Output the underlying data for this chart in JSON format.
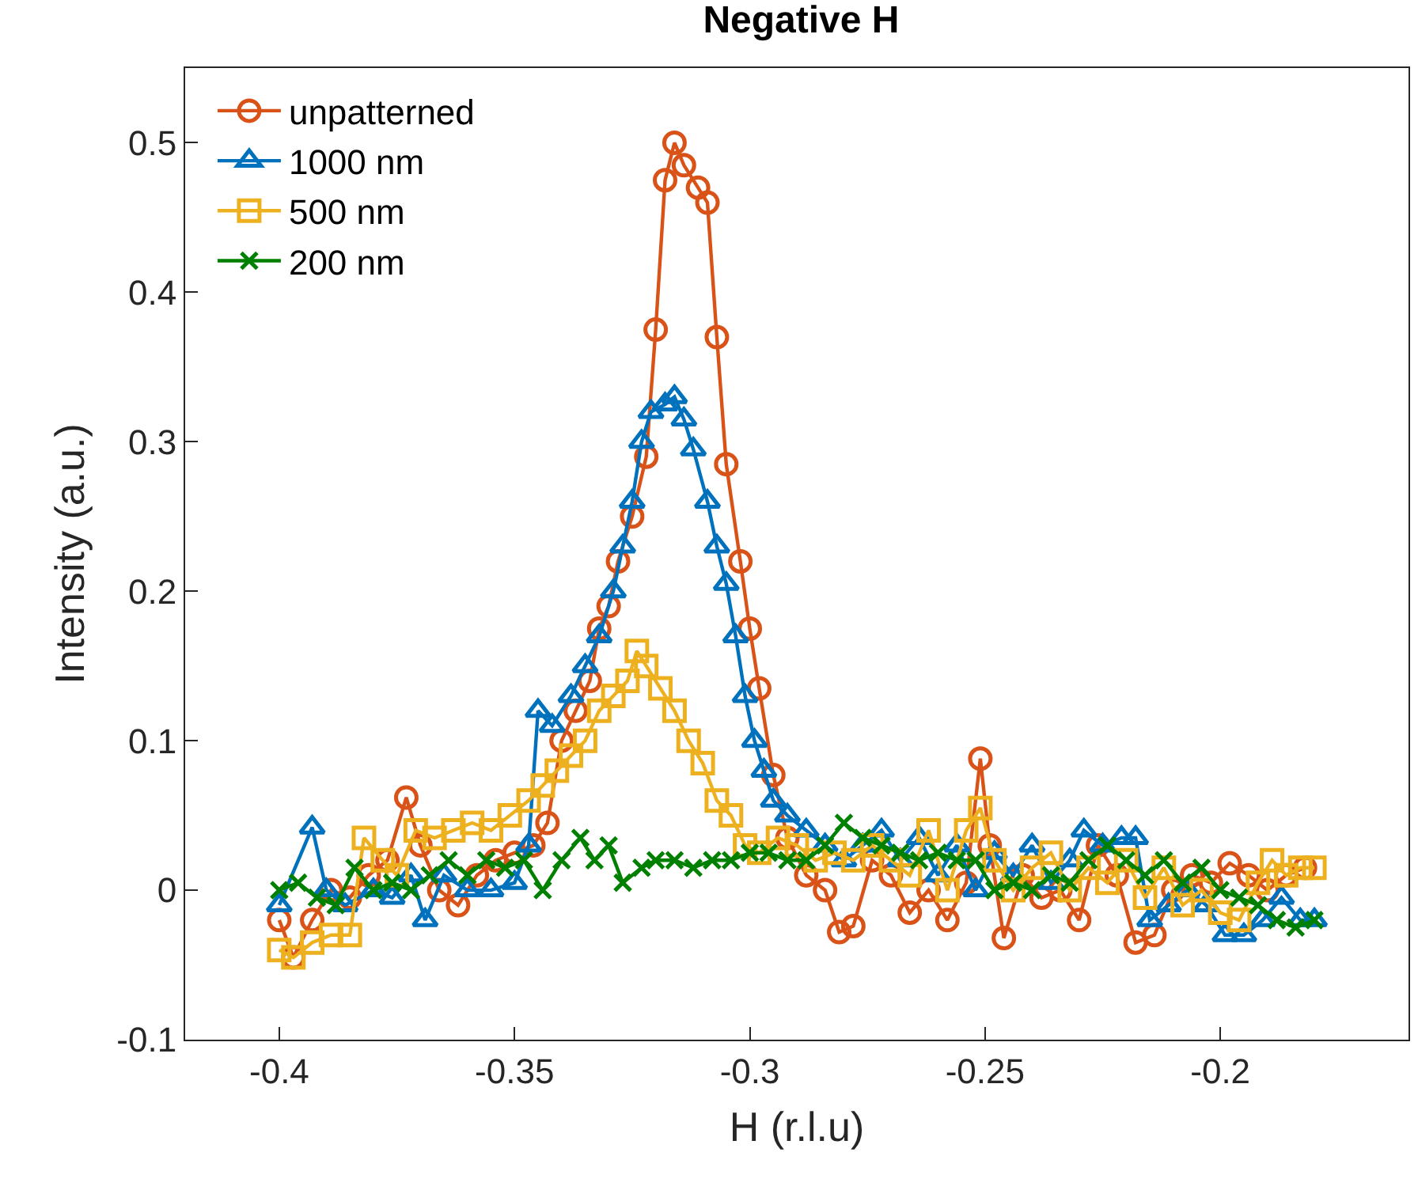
{
  "chart_data": {
    "type": "line",
    "title": "Negative H",
    "xlabel": "H (r.l.u)",
    "ylabel": "Intensity (a.u.)",
    "xlim": [
      -0.42,
      -0.16
    ],
    "xticks": [
      -0.4,
      -0.35,
      -0.3,
      -0.25,
      -0.2
    ],
    "ylim": [
      -0.1,
      0.55
    ],
    "yticks": [
      -0.1,
      0,
      0.1,
      0.2,
      0.3,
      0.4,
      0.5
    ],
    "legend": "top left",
    "line_style": "solid",
    "series": [
      {
        "name": "unpatterned",
        "color": "#d95319",
        "marker": "circle",
        "x": [
          -0.4,
          -0.397,
          -0.393,
          -0.389,
          -0.385,
          -0.381,
          -0.377,
          -0.373,
          -0.37,
          -0.366,
          -0.362,
          -0.358,
          -0.354,
          -0.35,
          -0.346,
          -0.343,
          -0.34,
          -0.337,
          -0.334,
          -0.332,
          -0.33,
          -0.328,
          -0.325,
          -0.322,
          -0.32,
          -0.318,
          -0.316,
          -0.314,
          -0.311,
          -0.309,
          -0.307,
          -0.305,
          -0.302,
          -0.3,
          -0.298,
          -0.295,
          -0.292,
          -0.288,
          -0.284,
          -0.281,
          -0.278,
          -0.274,
          -0.27,
          -0.266,
          -0.262,
          -0.258,
          -0.254,
          -0.251,
          -0.249,
          -0.246,
          -0.242,
          -0.238,
          -0.234,
          -0.23,
          -0.226,
          -0.222,
          -0.218,
          -0.214,
          -0.21,
          -0.206,
          -0.202,
          -0.198,
          -0.194,
          -0.19,
          -0.186,
          -0.182
        ],
        "values": [
          -0.02,
          -0.045,
          -0.02,
          0.0,
          -0.005,
          0.01,
          0.02,
          0.062,
          0.03,
          0.0,
          -0.01,
          0.01,
          0.02,
          0.025,
          0.03,
          0.045,
          0.1,
          0.12,
          0.14,
          0.175,
          0.19,
          0.22,
          0.25,
          0.29,
          0.375,
          0.475,
          0.5,
          0.485,
          0.47,
          0.46,
          0.37,
          0.285,
          0.22,
          0.175,
          0.135,
          0.077,
          0.035,
          0.01,
          0.0,
          -0.028,
          -0.024,
          0.02,
          0.01,
          -0.015,
          0.0,
          -0.02,
          0.005,
          0.088,
          0.03,
          -0.032,
          0.01,
          -0.005,
          0.0,
          -0.02,
          0.03,
          0.01,
          -0.035,
          -0.03,
          0.0,
          0.01,
          0.005,
          0.018,
          0.01,
          0.0,
          0.01,
          0.015
        ]
      },
      {
        "name": "1000 nm",
        "color": "#0072bd",
        "marker": "triangle",
        "x": [
          -0.4,
          -0.393,
          -0.39,
          -0.386,
          -0.38,
          -0.376,
          -0.372,
          -0.369,
          -0.365,
          -0.36,
          -0.355,
          -0.35,
          -0.347,
          -0.345,
          -0.342,
          -0.338,
          -0.335,
          -0.332,
          -0.329,
          -0.327,
          -0.325,
          -0.323,
          -0.321,
          -0.318,
          -0.316,
          -0.314,
          -0.312,
          -0.309,
          -0.307,
          -0.305,
          -0.303,
          -0.301,
          -0.299,
          -0.297,
          -0.295,
          -0.292,
          -0.288,
          -0.284,
          -0.28,
          -0.276,
          -0.272,
          -0.268,
          -0.264,
          -0.26,
          -0.256,
          -0.252,
          -0.248,
          -0.244,
          -0.24,
          -0.236,
          -0.232,
          -0.229,
          -0.225,
          -0.221,
          -0.218,
          -0.215,
          -0.211,
          -0.207,
          -0.203,
          -0.199,
          -0.195,
          -0.191,
          -0.187,
          -0.183,
          -0.18
        ],
        "values": [
          -0.01,
          0.042,
          0.0,
          -0.01,
          0.0,
          -0.005,
          0.01,
          -0.02,
          0.01,
          0.0,
          0.0,
          0.005,
          0.03,
          0.12,
          0.11,
          0.13,
          0.15,
          0.17,
          0.2,
          0.23,
          0.26,
          0.3,
          0.32,
          0.325,
          0.33,
          0.315,
          0.295,
          0.26,
          0.23,
          0.205,
          0.17,
          0.13,
          0.1,
          0.08,
          0.06,
          0.05,
          0.04,
          0.03,
          0.02,
          0.03,
          0.04,
          0.02,
          0.035,
          0.01,
          0.03,
          0.0,
          0.025,
          0.01,
          0.03,
          0.005,
          0.02,
          0.04,
          0.03,
          0.035,
          0.035,
          -0.02,
          -0.01,
          0.0,
          -0.01,
          -0.03,
          -0.03,
          -0.02,
          -0.005,
          -0.02,
          -0.02
        ]
      },
      {
        "name": "500 nm",
        "color": "#edb120",
        "marker": "square",
        "x": [
          -0.4,
          -0.397,
          -0.393,
          -0.389,
          -0.385,
          -0.382,
          -0.378,
          -0.375,
          -0.371,
          -0.367,
          -0.363,
          -0.359,
          -0.355,
          -0.351,
          -0.347,
          -0.344,
          -0.341,
          -0.338,
          -0.335,
          -0.332,
          -0.329,
          -0.326,
          -0.324,
          -0.322,
          -0.319,
          -0.316,
          -0.313,
          -0.31,
          -0.307,
          -0.304,
          -0.301,
          -0.298,
          -0.294,
          -0.29,
          -0.286,
          -0.282,
          -0.278,
          -0.274,
          -0.27,
          -0.266,
          -0.262,
          -0.258,
          -0.254,
          -0.251,
          -0.248,
          -0.244,
          -0.24,
          -0.236,
          -0.232,
          -0.228,
          -0.224,
          -0.22,
          -0.216,
          -0.212,
          -0.208,
          -0.204,
          -0.2,
          -0.196,
          -0.192,
          -0.189,
          -0.186,
          -0.183,
          -0.18
        ],
        "values": [
          -0.04,
          -0.045,
          -0.035,
          -0.03,
          -0.03,
          0.035,
          0.02,
          0.01,
          0.04,
          0.035,
          0.04,
          0.045,
          0.04,
          0.05,
          0.06,
          0.07,
          0.08,
          0.09,
          0.1,
          0.12,
          0.13,
          0.14,
          0.16,
          0.15,
          0.135,
          0.12,
          0.1,
          0.085,
          0.06,
          0.05,
          0.03,
          0.025,
          0.035,
          0.03,
          0.02,
          0.025,
          0.02,
          0.03,
          0.02,
          0.01,
          0.04,
          0.0,
          0.04,
          0.055,
          0.02,
          0.0,
          0.015,
          0.025,
          0.0,
          0.015,
          0.005,
          0.02,
          -0.005,
          0.015,
          -0.01,
          0.0,
          -0.015,
          -0.02,
          0.005,
          0.02,
          0.01,
          0.015,
          0.015
        ]
      },
      {
        "name": "200 nm",
        "color": "#008000",
        "marker": "cross",
        "x": [
          -0.4,
          -0.396,
          -0.392,
          -0.388,
          -0.384,
          -0.38,
          -0.376,
          -0.372,
          -0.368,
          -0.364,
          -0.36,
          -0.356,
          -0.352,
          -0.348,
          -0.344,
          -0.34,
          -0.336,
          -0.333,
          -0.33,
          -0.327,
          -0.323,
          -0.32,
          -0.316,
          -0.312,
          -0.308,
          -0.304,
          -0.3,
          -0.296,
          -0.292,
          -0.288,
          -0.284,
          -0.28,
          -0.276,
          -0.272,
          -0.268,
          -0.264,
          -0.26,
          -0.256,
          -0.252,
          -0.248,
          -0.244,
          -0.24,
          -0.236,
          -0.232,
          -0.228,
          -0.224,
          -0.22,
          -0.216,
          -0.212,
          -0.208,
          -0.204,
          -0.2,
          -0.196,
          -0.192,
          -0.188,
          -0.184,
          -0.18
        ],
        "values": [
          0.0,
          0.005,
          -0.005,
          -0.01,
          0.015,
          0.0,
          0.005,
          0.0,
          0.01,
          0.02,
          0.01,
          0.02,
          0.015,
          0.02,
          0.0,
          0.02,
          0.035,
          0.02,
          0.03,
          0.005,
          0.015,
          0.02,
          0.02,
          0.015,
          0.02,
          0.02,
          0.025,
          0.025,
          0.02,
          0.02,
          0.03,
          0.045,
          0.035,
          0.03,
          0.025,
          0.02,
          0.025,
          0.02,
          0.02,
          0.0,
          0.005,
          0.0,
          0.01,
          0.005,
          0.02,
          0.03,
          0.02,
          0.01,
          0.02,
          0.005,
          0.015,
          0.0,
          -0.005,
          -0.01,
          -0.02,
          -0.025,
          -0.02
        ]
      }
    ]
  }
}
